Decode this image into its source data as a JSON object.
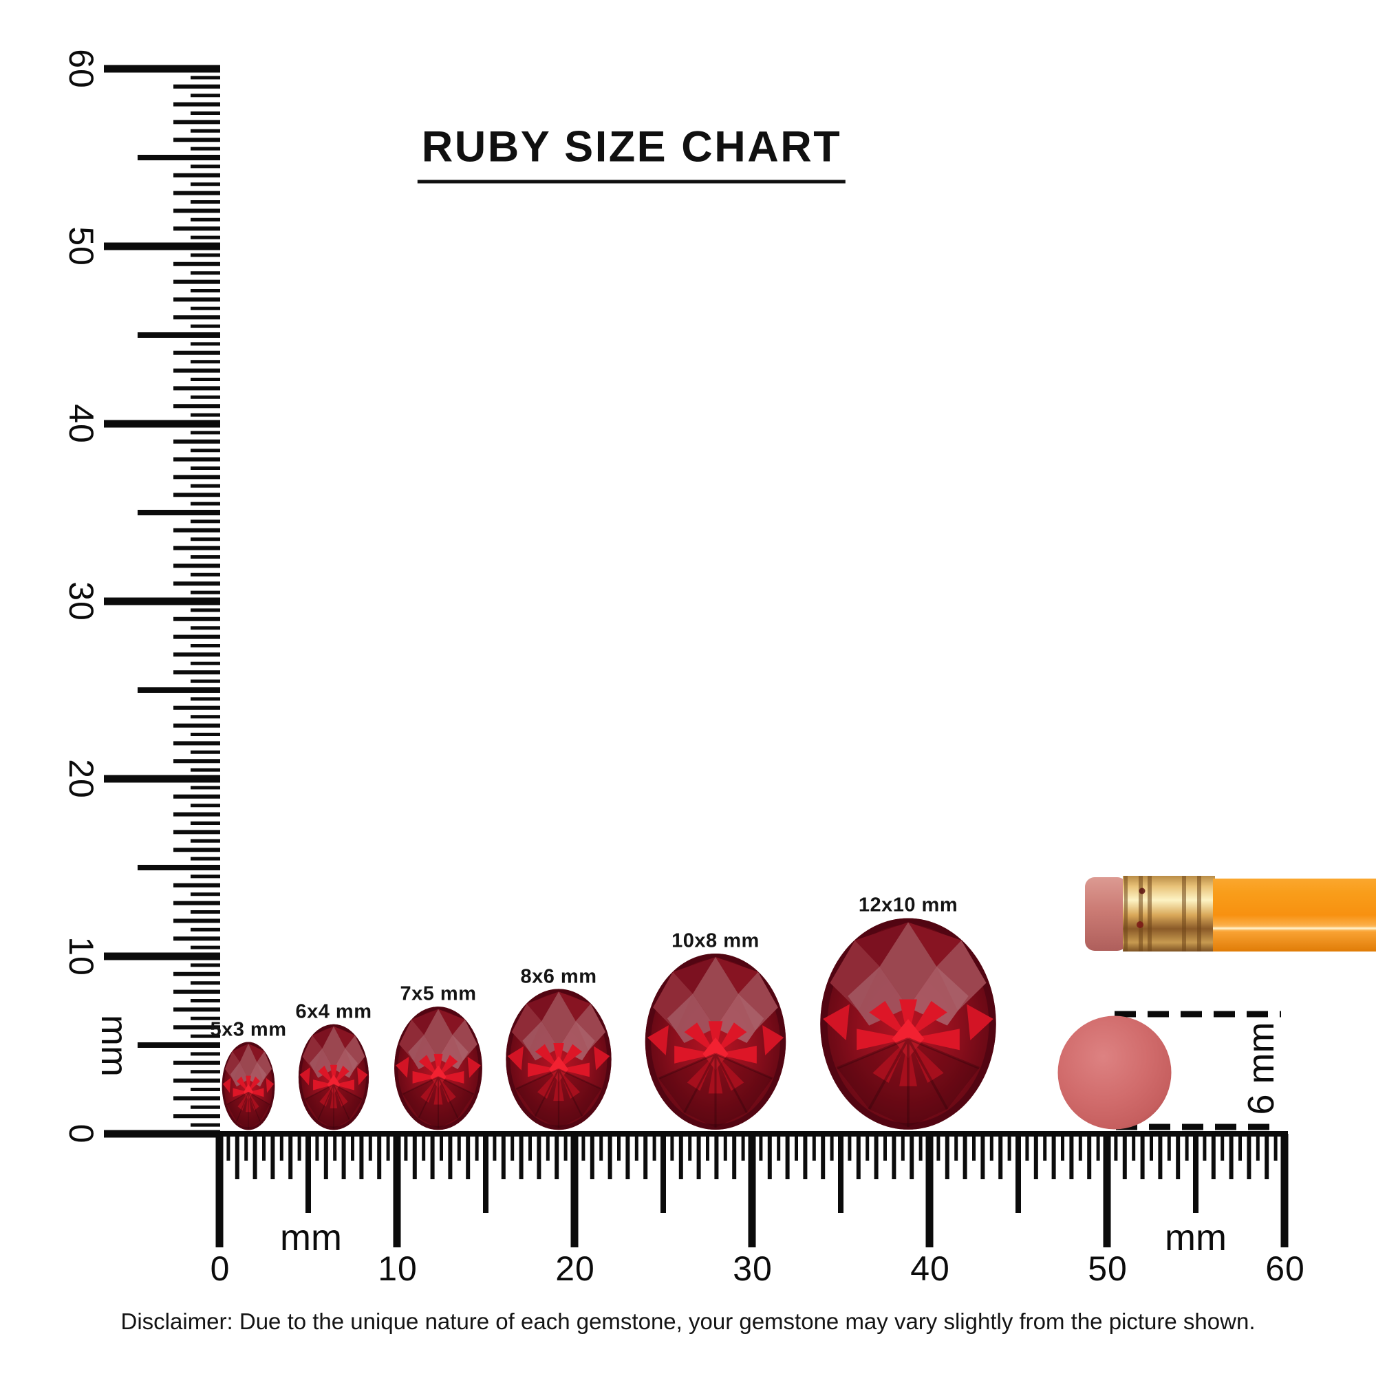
{
  "title": "RUBY SIZE CHART",
  "disclaimer": "Disclaimer: Due to the unique nature of each gemstone, your gemstone may vary slightly from the picture shown.",
  "vertical_ruler": {
    "unit": "mm",
    "labels": [
      "60",
      "50",
      "40",
      "30",
      "20",
      "10",
      "0"
    ]
  },
  "horizontal_ruler": {
    "unit_left": "mm",
    "unit_right": "mm",
    "labels": [
      "0",
      "10",
      "20",
      "30",
      "40",
      "50",
      "60"
    ]
  },
  "gems": [
    {
      "label": "5x3 mm",
      "length_mm": 5,
      "width_mm": 3
    },
    {
      "label": "6x4 mm",
      "length_mm": 6,
      "width_mm": 4
    },
    {
      "label": "7x5 mm",
      "length_mm": 7,
      "width_mm": 5
    },
    {
      "label": "8x6 mm",
      "length_mm": 8,
      "width_mm": 6
    },
    {
      "label": "10x8 mm",
      "length_mm": 10,
      "width_mm": 8
    },
    {
      "label": "12x10 mm",
      "length_mm": 12,
      "width_mm": 10
    }
  ],
  "eraser_reference": {
    "diameter_label": "6 mm",
    "diameter_mm": 6
  },
  "colors": {
    "ink": "#0b0b0b",
    "ruby_dark": "#4a0610",
    "ruby_mid": "#8e0f1d",
    "ruby_bright": "#e01727",
    "eraser_pink": "#d06767",
    "pencil_orange": "#f89110",
    "ferrule_gold": "#e9c379"
  }
}
